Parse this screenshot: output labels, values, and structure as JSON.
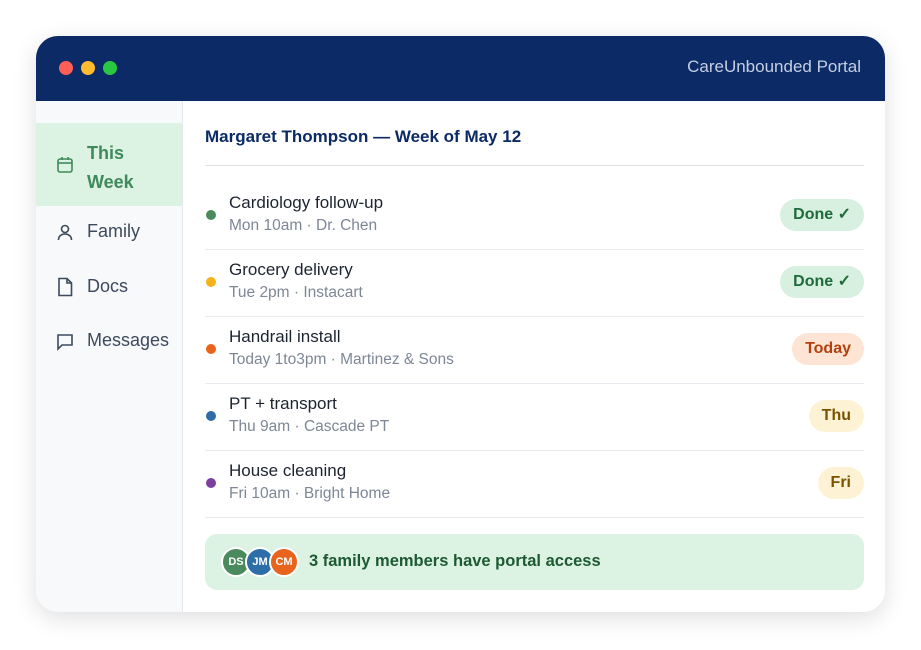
{
  "window": {
    "title": "CareUnbounded Portal"
  },
  "sidebar": {
    "items": [
      "This Week",
      "Family",
      "Docs",
      "Messages"
    ]
  },
  "main": {
    "heading": "Margaret Thompson — Week of May 12",
    "rows": [
      {
        "title": "Cardiology follow-up",
        "detail": "Mon 10am · Dr. Chen",
        "badge": "Done ✓"
      },
      {
        "title": "Grocery delivery",
        "detail": "Tue 2pm · Instacart",
        "badge": "Done ✓"
      },
      {
        "title": "Handrail install",
        "detail": "Today 1to3pm · Martinez & Sons",
        "badge": "Today"
      },
      {
        "title": "PT + transport",
        "detail": "Thu 9am · Cascade PT",
        "badge": "Thu"
      },
      {
        "title": "House cleaning",
        "detail": "Fri 10am · Bright Home",
        "badge": "Fri"
      }
    ],
    "footer": {
      "avatars": [
        "DS",
        "JM",
        "CM"
      ],
      "text": "3 family members have portal access"
    }
  }
}
